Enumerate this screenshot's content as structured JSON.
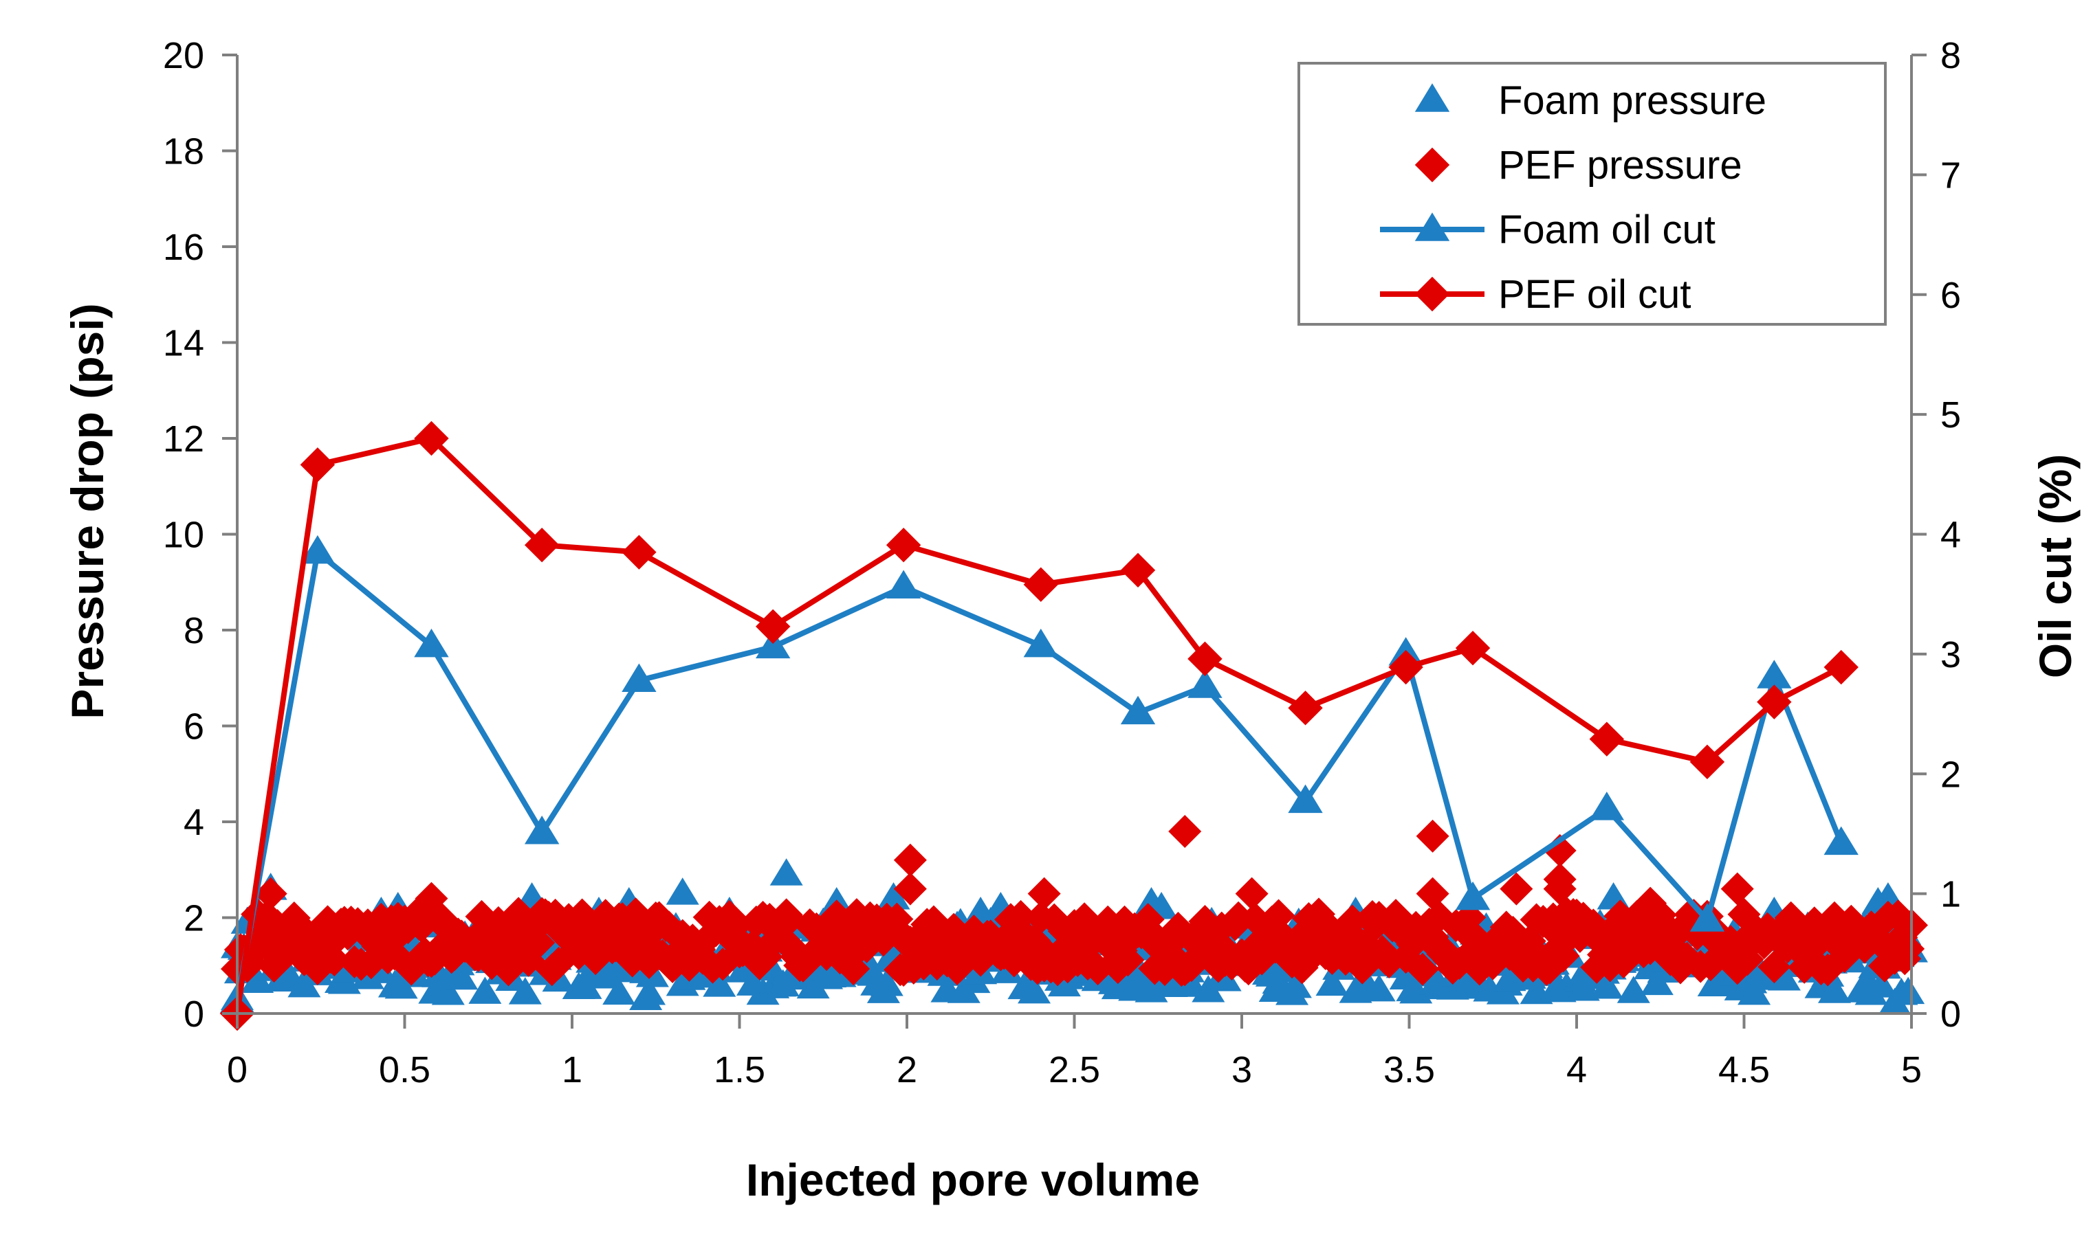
{
  "chart_data": {
    "type": "line",
    "title": "",
    "xlabel": "Injected pore volume",
    "ylabel": "Pressure drop (psi)",
    "y2label": "Oil cut (%)",
    "xlim": [
      0,
      5
    ],
    "ylim": [
      0,
      20
    ],
    "y2lim": [
      0,
      8
    ],
    "x_ticks": [
      0,
      0.5,
      1,
      1.5,
      2,
      2.5,
      3,
      3.5,
      4,
      4.5,
      5
    ],
    "x_tick_labels": [
      "0",
      "0.5",
      "1",
      "1.5",
      "2",
      "2.5",
      "3",
      "3.5",
      "4",
      "4.5",
      "5"
    ],
    "y_ticks": [
      0,
      2,
      4,
      6,
      8,
      10,
      12,
      14,
      16,
      18,
      20
    ],
    "y_tick_labels": [
      "0",
      "2",
      "4",
      "6",
      "8",
      "10",
      "12",
      "14",
      "16",
      "18",
      "20"
    ],
    "y2_ticks": [
      0,
      1,
      2,
      3,
      4,
      5,
      6,
      7,
      8
    ],
    "y2_tick_labels": [
      "0",
      "1",
      "2",
      "3",
      "4",
      "5",
      "6",
      "7",
      "8"
    ],
    "grid": false,
    "legend_position": "top-right",
    "colors": {
      "foam": "#1f7fc4",
      "pef": "#e00000"
    },
    "series": [
      {
        "name": "Foam pressure",
        "kind": "scatter",
        "marker": "triangle",
        "axis": "left",
        "band": {
          "x_from": 0,
          "x_to": 5,
          "x_step": 0.01,
          "y_min": 0.4,
          "y_max": 1.9
        },
        "outliers": [
          {
            "x": 0.1,
            "y": 2.6
          },
          {
            "x": 0.43,
            "y": 2.1
          },
          {
            "x": 0.48,
            "y": 2.2
          },
          {
            "x": 0.88,
            "y": 2.4
          },
          {
            "x": 1.08,
            "y": 2.1
          },
          {
            "x": 1.17,
            "y": 2.3
          },
          {
            "x": 1.22,
            "y": 0.3
          },
          {
            "x": 1.33,
            "y": 2.5
          },
          {
            "x": 1.47,
            "y": 2.1
          },
          {
            "x": 1.64,
            "y": 2.9
          },
          {
            "x": 1.79,
            "y": 2.3
          },
          {
            "x": 1.96,
            "y": 2.4
          },
          {
            "x": 2.22,
            "y": 2.1
          },
          {
            "x": 2.28,
            "y": 2.2
          },
          {
            "x": 2.73,
            "y": 2.3
          },
          {
            "x": 2.76,
            "y": 2.2
          },
          {
            "x": 3.34,
            "y": 2.1
          },
          {
            "x": 4.11,
            "y": 2.4
          },
          {
            "x": 4.22,
            "y": 2.2
          },
          {
            "x": 4.59,
            "y": 2.1
          },
          {
            "x": 4.9,
            "y": 2.3
          },
          {
            "x": 4.93,
            "y": 2.4
          },
          {
            "x": 4.95,
            "y": 0.2
          },
          {
            "x": 0.0,
            "y": 0.3
          }
        ]
      },
      {
        "name": "PEF pressure",
        "kind": "scatter",
        "marker": "diamond",
        "axis": "left",
        "band": {
          "x_from": 0,
          "x_to": 5,
          "x_step": 0.01,
          "y_min": 0.9,
          "y_max": 2.1
        },
        "outliers": [
          {
            "x": 0.0,
            "y": 0.0
          },
          {
            "x": 0.1,
            "y": 2.5
          },
          {
            "x": 0.58,
            "y": 2.4
          },
          {
            "x": 2.01,
            "y": 3.2
          },
          {
            "x": 2.01,
            "y": 2.6
          },
          {
            "x": 2.41,
            "y": 2.5
          },
          {
            "x": 2.83,
            "y": 3.8
          },
          {
            "x": 3.03,
            "y": 2.5
          },
          {
            "x": 3.57,
            "y": 3.7
          },
          {
            "x": 3.57,
            "y": 2.5
          },
          {
            "x": 3.82,
            "y": 2.6
          },
          {
            "x": 3.95,
            "y": 3.4
          },
          {
            "x": 3.95,
            "y": 2.8
          },
          {
            "x": 3.95,
            "y": 2.6
          },
          {
            "x": 4.48,
            "y": 2.6
          },
          {
            "x": 4.22,
            "y": 2.3
          }
        ]
      },
      {
        "name": "Foam oil cut",
        "kind": "line",
        "marker": "triangle",
        "axis": "right",
        "x": [
          0,
          0.24,
          0.58,
          0.91,
          1.2,
          1.6,
          1.99,
          2.4,
          2.69,
          2.89,
          3.19,
          3.49,
          3.69,
          4.09,
          4.39,
          4.59,
          4.79
        ],
        "values": [
          0.1,
          3.85,
          3.07,
          1.51,
          2.78,
          3.06,
          3.56,
          3.07,
          2.51,
          2.73,
          1.77,
          3.0,
          0.96,
          1.71,
          0.78,
          2.81,
          1.42
        ]
      },
      {
        "name": "PEF oil cut",
        "kind": "line",
        "marker": "diamond",
        "axis": "right",
        "x": [
          0,
          0.24,
          0.58,
          0.91,
          1.2,
          1.6,
          1.99,
          2.4,
          2.69,
          2.89,
          3.19,
          3.49,
          3.69,
          4.09,
          4.39,
          4.59,
          4.79
        ],
        "values": [
          0.0,
          4.58,
          4.8,
          3.91,
          3.85,
          3.23,
          3.91,
          3.58,
          3.7,
          2.96,
          2.55,
          2.89,
          3.05,
          2.29,
          2.1,
          2.6,
          2.89
        ]
      }
    ]
  },
  "legend": {
    "items": [
      {
        "label": "Foam pressure",
        "kind": "scatter",
        "marker": "triangle",
        "color_key": "foam"
      },
      {
        "label": "PEF pressure",
        "kind": "scatter",
        "marker": "diamond",
        "color_key": "pef"
      },
      {
        "label": "Foam oil cut",
        "kind": "line",
        "marker": "triangle",
        "color_key": "foam"
      },
      {
        "label": "PEF oil cut",
        "kind": "line",
        "marker": "diamond",
        "color_key": "pef"
      }
    ]
  }
}
